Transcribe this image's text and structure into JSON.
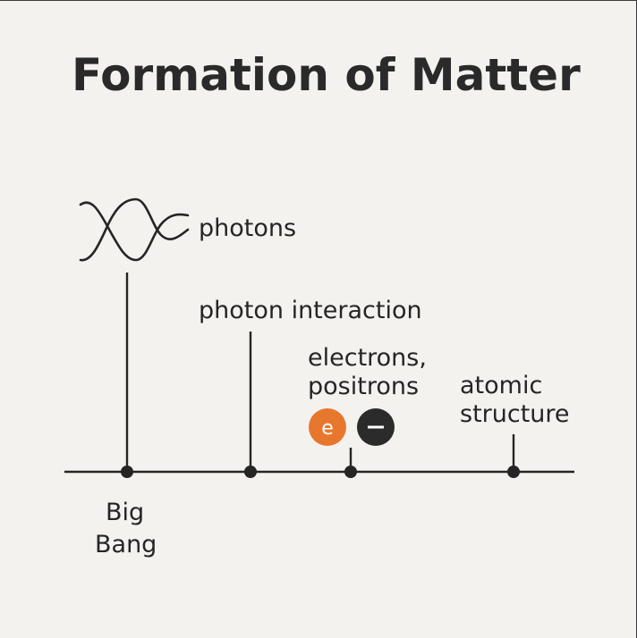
{
  "title": "Formation of Matter",
  "labels": {
    "photons": "photons",
    "photon_interaction": "photon interaction",
    "electrons_positrons_line1": "electrons,",
    "electrons_positrons_line2": "positrons",
    "atomic_structure_line1": "atomic",
    "atomic_structure_line2": "structure",
    "big_bang_line1": "Big",
    "big_bang_line2": "Bang"
  },
  "particles": {
    "electron_symbol": "e",
    "positron_symbol": "−"
  },
  "colors": {
    "background": "#f4f2ef",
    "ink": "#252525",
    "electron": "#e8772e",
    "positron": "#2b2b2b"
  },
  "icons": [
    "photon-wave-icon",
    "electron-icon",
    "positron-icon"
  ]
}
